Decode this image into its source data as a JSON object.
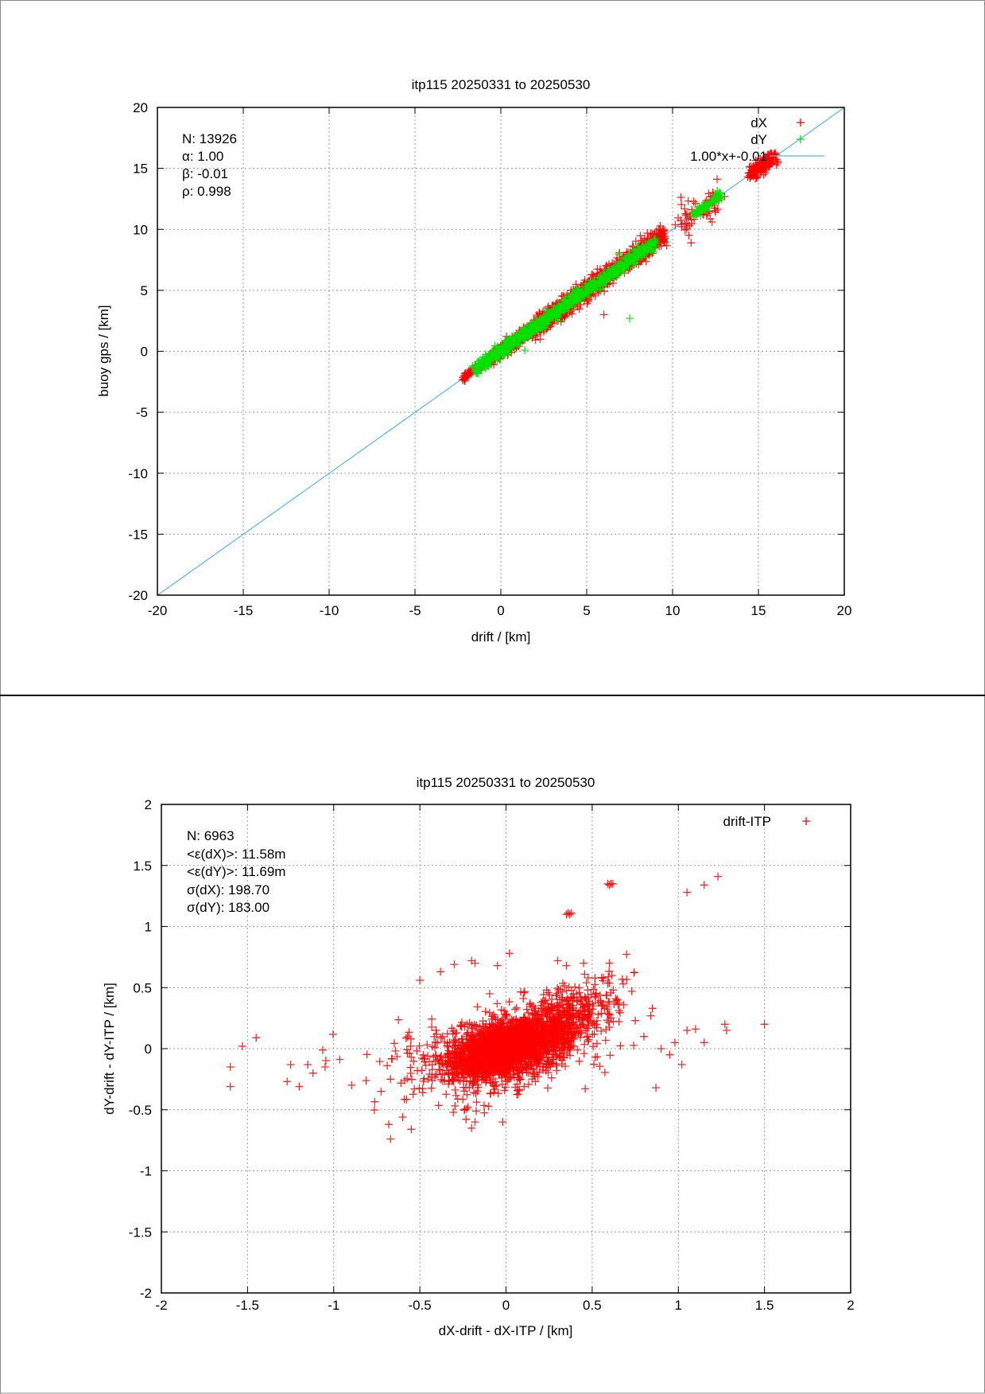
{
  "chart_data": [
    {
      "type": "scatter",
      "title": "itp115 20250331 to 20250530",
      "xlabel": "drift / [km]",
      "ylabel": "buoy gps / [km]",
      "xlim": [
        -20,
        20
      ],
      "ylim": [
        -20,
        20
      ],
      "xticks": [
        "-20",
        "-15",
        "-10",
        "-5",
        "0",
        "5",
        "10",
        "15",
        "20"
      ],
      "yticks": [
        "-20",
        "-15",
        "-10",
        "-5",
        "0",
        "5",
        "10",
        "15",
        "20"
      ],
      "grid": true,
      "legend_position": "top-right",
      "stats": [
        "N: 13926",
        "α: 1.00",
        "β: -0.01",
        "ρ: 0.998"
      ],
      "legend": [
        "dX",
        "dY",
        "1.00*x+-0.01"
      ],
      "fit": {
        "slope": 1.0,
        "intercept": -0.01
      },
      "colors": {
        "dX": "#ff0000",
        "dY": "#00e000",
        "fit": "#56b4e9"
      },
      "series": [
        {
          "name": "dX",
          "clusters": [
            {
              "x0": -2.2,
              "x1": -0.5,
              "n": 80,
              "spread": 0.15
            },
            {
              "x0": -0.5,
              "x1": 2.0,
              "n": 400,
              "spread": 0.25
            },
            {
              "x0": 2.0,
              "x1": 5.0,
              "n": 500,
              "spread": 0.4
            },
            {
              "x0": 5.0,
              "x1": 9.5,
              "n": 500,
              "spread": 0.4
            },
            {
              "x0": 10.6,
              "x1": 11.2,
              "n": 30,
              "spread": 0.8
            },
            {
              "x0": 11.8,
              "x1": 12.6,
              "n": 30,
              "spread": 0.7
            },
            {
              "x0": 14.5,
              "x1": 16.0,
              "n": 220,
              "spread": 0.25
            }
          ],
          "outliers": [
            [
              6.0,
              3.0
            ]
          ]
        },
        {
          "name": "dY",
          "clusters": [
            {
              "x0": -1.5,
              "x1": 9.0,
              "n": 900,
              "spread": 0.25
            },
            {
              "x0": 11.2,
              "x1": 12.8,
              "n": 80,
              "spread": 0.2
            }
          ],
          "outliers": [
            [
              7.5,
              2.7
            ],
            [
              1.4,
              0.1
            ]
          ]
        }
      ]
    },
    {
      "type": "scatter",
      "title": "itp115 20250331 to 20250530",
      "xlabel": "dX-drift - dX-ITP / [km]",
      "ylabel": "dY-drift - dY-ITP / [km]",
      "xlim": [
        -2,
        2
      ],
      "ylim": [
        -2,
        2
      ],
      "xticks": [
        "-2",
        "-1.5",
        "-1",
        "-0.5",
        "0",
        "0.5",
        "1",
        "1.5",
        "2"
      ],
      "yticks": [
        "-2",
        "-1.5",
        "-1",
        "-0.5",
        "0",
        "0.5",
        "1",
        "1.5",
        "2"
      ],
      "grid": true,
      "legend_position": "top-right",
      "stats": [
        "N: 6963",
        "<ε(dX)>:  11.58m",
        "<ε(dY)>: 11.69m",
        "σ(dX):  198.70",
        "σ(dY):  183.00"
      ],
      "legend": [
        "drift-ITP"
      ],
      "colors": {
        "drift-ITP": "#ff0000"
      },
      "series": [
        {
          "name": "drift-ITP",
          "clusters": [
            {
              "mx": 0.0,
              "my": 0.0,
              "sx": 0.17,
              "sy": 0.13,
              "rho": 0.45,
              "n": 2200
            },
            {
              "mx": 0.35,
              "my": 0.25,
              "sx": 0.15,
              "sy": 0.15,
              "rho": 0.5,
              "n": 400
            },
            {
              "mx": -0.1,
              "my": -0.05,
              "sx": 0.35,
              "sy": 0.2,
              "rho": 0.3,
              "n": 250
            }
          ],
          "outliers": [
            [
              -1.6,
              -0.15
            ],
            [
              -1.6,
              -0.31
            ],
            [
              -1.53,
              0.02
            ],
            [
              -1.45,
              0.09
            ],
            [
              -1.27,
              -0.27
            ],
            [
              -1.25,
              -0.13
            ],
            [
              -1.2,
              -0.31
            ],
            [
              -1.15,
              -0.13
            ],
            [
              -1.12,
              -0.2
            ],
            [
              -1.05,
              -0.15
            ],
            [
              1.5,
              0.2
            ],
            [
              1.28,
              0.15
            ],
            [
              1.27,
              0.2
            ],
            [
              1.15,
              0.05
            ],
            [
              1.1,
              0.16
            ],
            [
              1.05,
              0.15
            ],
            [
              1.02,
              -0.13
            ],
            [
              0.98,
              0.05
            ],
            [
              0.87,
              -0.32
            ],
            [
              0.35,
              1.1
            ],
            [
              0.36,
              1.11
            ],
            [
              0.37,
              1.1
            ],
            [
              0.38,
              1.11
            ],
            [
              0.59,
              1.35
            ],
            [
              0.6,
              1.34
            ],
            [
              0.61,
              1.35
            ],
            [
              0.62,
              1.35
            ],
            [
              1.05,
              1.28
            ],
            [
              1.15,
              1.34
            ],
            [
              1.23,
              1.41
            ],
            [
              -0.67,
              -0.74
            ],
            [
              -0.68,
              -0.62
            ],
            [
              -0.6,
              -0.56
            ],
            [
              -0.55,
              -0.66
            ],
            [
              -0.2,
              -0.65
            ],
            [
              -0.18,
              -0.6
            ],
            [
              -0.02,
              -0.6
            ],
            [
              -0.5,
              0.56
            ],
            [
              -0.38,
              0.63
            ],
            [
              -0.3,
              0.69
            ],
            [
              -0.2,
              0.72
            ],
            [
              -0.18,
              0.7
            ],
            [
              -0.05,
              0.68
            ],
            [
              0.02,
              0.78
            ],
            [
              0.3,
              0.72
            ],
            [
              0.35,
              0.68
            ],
            [
              0.45,
              0.7
            ],
            [
              0.6,
              0.7
            ],
            [
              0.68,
              0.53
            ],
            [
              0.73,
              0.47
            ],
            [
              0.75,
              0.23
            ],
            [
              0.84,
              0.27
            ],
            [
              0.85,
              0.33
            ],
            [
              0.8,
              0.1
            ],
            [
              0.9,
              0.0
            ],
            [
              0.95,
              -0.05
            ]
          ]
        }
      ]
    }
  ]
}
